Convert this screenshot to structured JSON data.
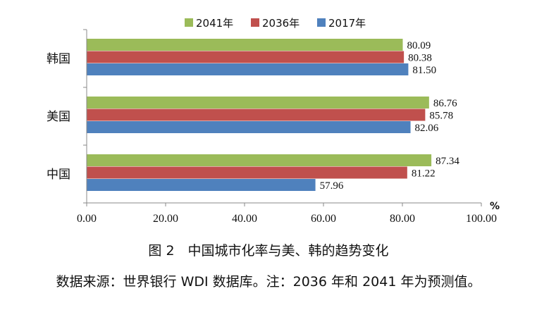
{
  "chart_data": {
    "type": "bar",
    "orientation": "horizontal",
    "categories": [
      "韩国",
      "美国",
      "中国"
    ],
    "series": [
      {
        "name": "2041年",
        "color": "#9BBB59",
        "values": [
          80.09,
          86.76,
          87.34
        ]
      },
      {
        "name": "2036年",
        "color": "#C0504D",
        "values": [
          80.38,
          85.78,
          81.22
        ]
      },
      {
        "name": "2017年",
        "color": "#4F81BD",
        "values": [
          81.5,
          82.06,
          57.96
        ]
      }
    ],
    "xlim": [
      0,
      100
    ],
    "xticks": [
      "0.00",
      "20.00",
      "40.00",
      "60.00",
      "80.00",
      "100.00"
    ],
    "unit": "%",
    "legend_position": "top",
    "grid": false
  },
  "caption": {
    "title": "图 2　中国城市化率与美、韩的趋势变化",
    "source": "数据来源：世界银行 WDI 数据库。注：2036 年和 2041 年为预测值。"
  }
}
